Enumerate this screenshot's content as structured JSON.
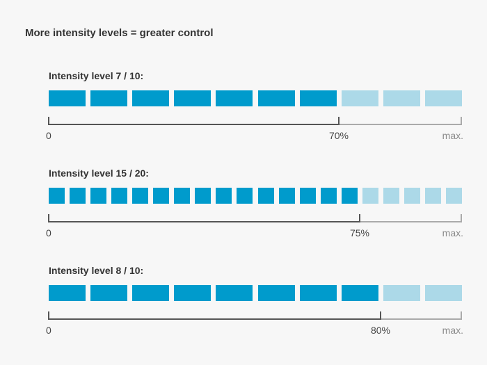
{
  "heading": "More intensity levels = greater control",
  "colors": {
    "active": "#009bcc",
    "inactive": "#acd9e8",
    "scale_active": "#555555",
    "scale_inactive": "#aaaaaa"
  },
  "rows": [
    {
      "title": "Intensity level 7 / 10:",
      "level": 7,
      "total": 10,
      "zero_label": "0",
      "percent_label": "70%",
      "max_label": "max."
    },
    {
      "title": "Intensity level 15 / 20:",
      "level": 15,
      "total": 20,
      "zero_label": "0",
      "percent_label": "75%",
      "max_label": "max."
    },
    {
      "title": "Intensity level 8 / 10:",
      "level": 8,
      "total": 10,
      "zero_label": "0",
      "percent_label": "80%",
      "max_label": "max."
    }
  ]
}
